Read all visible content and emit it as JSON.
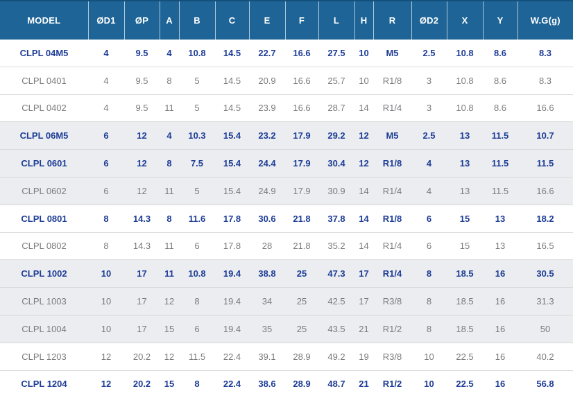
{
  "table": {
    "columns": [
      {
        "key": "model",
        "label": "MODEL"
      },
      {
        "key": "od1",
        "label": "ØD1"
      },
      {
        "key": "op",
        "label": "ØP"
      },
      {
        "key": "a",
        "label": "A"
      },
      {
        "key": "b",
        "label": "B"
      },
      {
        "key": "c",
        "label": "C"
      },
      {
        "key": "e",
        "label": "E"
      },
      {
        "key": "f",
        "label": "F"
      },
      {
        "key": "l",
        "label": "L"
      },
      {
        "key": "h",
        "label": "H"
      },
      {
        "key": "r",
        "label": "R"
      },
      {
        "key": "od2",
        "label": "ØD2"
      },
      {
        "key": "x",
        "label": "X"
      },
      {
        "key": "y",
        "label": "Y"
      },
      {
        "key": "wg",
        "label": "W.G(g)"
      }
    ],
    "rows": [
      {
        "cells": [
          "CLPL 04M5",
          "4",
          "9.5",
          "4",
          "10.8",
          "14.5",
          "22.7",
          "16.6",
          "27.5",
          "10",
          "M5",
          "2.5",
          "10.8",
          "8.6",
          "8.3"
        ],
        "highlight": true,
        "shaded": false
      },
      {
        "cells": [
          "CLPL 0401",
          "4",
          "9.5",
          "8",
          "5",
          "14.5",
          "20.9",
          "16.6",
          "25.7",
          "10",
          "R1/8",
          "3",
          "10.8",
          "8.6",
          "8.3"
        ],
        "highlight": false,
        "shaded": false
      },
      {
        "cells": [
          "CLPL 0402",
          "4",
          "9.5",
          "11",
          "5",
          "14.5",
          "23.9",
          "16.6",
          "28.7",
          "14",
          "R1/4",
          "3",
          "10.8",
          "8.6",
          "16.6"
        ],
        "highlight": false,
        "shaded": false
      },
      {
        "cells": [
          "CLPL 06M5",
          "6",
          "12",
          "4",
          "10.3",
          "15.4",
          "23.2",
          "17.9",
          "29.2",
          "12",
          "M5",
          "2.5",
          "13",
          "11.5",
          "10.7"
        ],
        "highlight": true,
        "shaded": true
      },
      {
        "cells": [
          "CLPL 0601",
          "6",
          "12",
          "8",
          "7.5",
          "15.4",
          "24.4",
          "17.9",
          "30.4",
          "12",
          "R1/8",
          "4",
          "13",
          "11.5",
          "11.5"
        ],
        "highlight": true,
        "shaded": true
      },
      {
        "cells": [
          "CLPL 0602",
          "6",
          "12",
          "11",
          "5",
          "15.4",
          "24.9",
          "17.9",
          "30.9",
          "14",
          "R1/4",
          "4",
          "13",
          "11.5",
          "16.6"
        ],
        "highlight": false,
        "shaded": true
      },
      {
        "cells": [
          "CLPL 0801",
          "8",
          "14.3",
          "8",
          "11.6",
          "17.8",
          "30.6",
          "21.8",
          "37.8",
          "14",
          "R1/8",
          "6",
          "15",
          "13",
          "18.2"
        ],
        "highlight": true,
        "shaded": false
      },
      {
        "cells": [
          "CLPL 0802",
          "8",
          "14.3",
          "11",
          "6",
          "17.8",
          "28",
          "21.8",
          "35.2",
          "14",
          "R1/4",
          "6",
          "15",
          "13",
          "16.5"
        ],
        "highlight": false,
        "shaded": false
      },
      {
        "cells": [
          "CLPL 1002",
          "10",
          "17",
          "11",
          "10.8",
          "19.4",
          "38.8",
          "25",
          "47.3",
          "17",
          "R1/4",
          "8",
          "18.5",
          "16",
          "30.5"
        ],
        "highlight": true,
        "shaded": true
      },
      {
        "cells": [
          "CLPL 1003",
          "10",
          "17",
          "12",
          "8",
          "19.4",
          "34",
          "25",
          "42.5",
          "17",
          "R3/8",
          "8",
          "18.5",
          "16",
          "31.3"
        ],
        "highlight": false,
        "shaded": true
      },
      {
        "cells": [
          "CLPL 1004",
          "10",
          "17",
          "15",
          "6",
          "19.4",
          "35",
          "25",
          "43.5",
          "21",
          "R1/2",
          "8",
          "18.5",
          "16",
          "50"
        ],
        "highlight": false,
        "shaded": true
      },
      {
        "cells": [
          "CLPL 1203",
          "12",
          "20.2",
          "12",
          "11.5",
          "22.4",
          "39.1",
          "28.9",
          "49.2",
          "19",
          "R3/8",
          "10",
          "22.5",
          "16",
          "40.2"
        ],
        "highlight": false,
        "shaded": false
      },
      {
        "cells": [
          "CLPL 1204",
          "12",
          "20.2",
          "15",
          "8",
          "22.4",
          "38.6",
          "28.9",
          "48.7",
          "21",
          "R1/2",
          "10",
          "22.5",
          "16",
          "56.8"
        ],
        "highlight": true,
        "shaded": false
      }
    ]
  },
  "colors": {
    "header_bg": "#1e6496",
    "header_top_border": "#14507c",
    "header_text": "#ffffff",
    "highlight_text": "#1e3d96",
    "normal_text": "#7b7b7e",
    "shaded_row_bg": "#ebedf0",
    "row_separator": "#d9d9d9"
  }
}
